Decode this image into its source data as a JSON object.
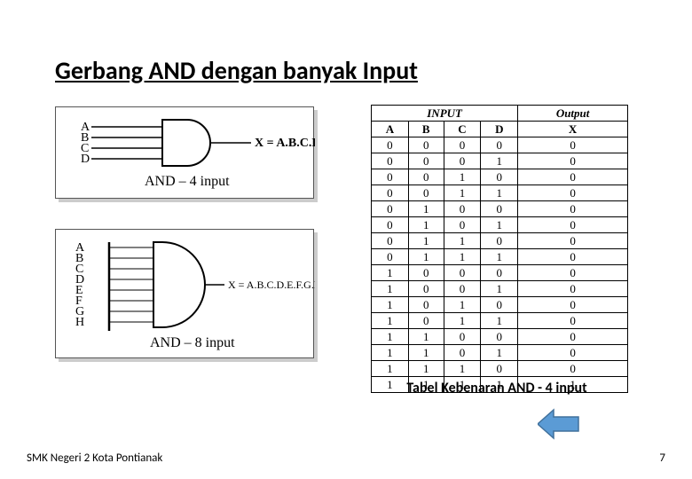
{
  "title": "Gerbang AND dengan banyak Input",
  "gate4": {
    "inputs": [
      "A",
      "B",
      "C",
      "D"
    ],
    "equation": "X = A.B.C.D",
    "label": "AND – 4 input"
  },
  "gate8": {
    "inputs": [
      "A",
      "B",
      "C",
      "D",
      "E",
      "F",
      "G",
      "H"
    ],
    "equation": "X = A.B.C.D.E.F.G.H",
    "label": "AND – 8 input"
  },
  "truth_table": {
    "header_inputs": "INPUT",
    "header_output": "Output",
    "cols": [
      "A",
      "B",
      "C",
      "D",
      "X"
    ],
    "rows": [
      [
        "0",
        "0",
        "0",
        "0",
        "0"
      ],
      [
        "0",
        "0",
        "0",
        "1",
        "0"
      ],
      [
        "0",
        "0",
        "1",
        "0",
        "0"
      ],
      [
        "0",
        "0",
        "1",
        "1",
        "0"
      ],
      [
        "0",
        "1",
        "0",
        "0",
        "0"
      ],
      [
        "0",
        "1",
        "0",
        "1",
        "0"
      ],
      [
        "0",
        "1",
        "1",
        "0",
        "0"
      ],
      [
        "0",
        "1",
        "1",
        "1",
        "0"
      ],
      [
        "1",
        "0",
        "0",
        "0",
        "0"
      ],
      [
        "1",
        "0",
        "0",
        "1",
        "0"
      ],
      [
        "1",
        "0",
        "1",
        "0",
        "0"
      ],
      [
        "1",
        "0",
        "1",
        "1",
        "0"
      ],
      [
        "1",
        "1",
        "0",
        "0",
        "0"
      ],
      [
        "1",
        "1",
        "0",
        "1",
        "0"
      ],
      [
        "1",
        "1",
        "1",
        "0",
        "0"
      ],
      [
        "1",
        "1",
        "1",
        "1",
        "1"
      ]
    ]
  },
  "caption": "Tabel Kebenaran AND - 4 input",
  "footer": "SMK Negeri 2 Kota Pontianak",
  "page": "7",
  "colors": {
    "arrow_fill": "#5b9bd5",
    "arrow_stroke": "#41719c",
    "shadow": "#cccccc",
    "border": "#555555"
  }
}
